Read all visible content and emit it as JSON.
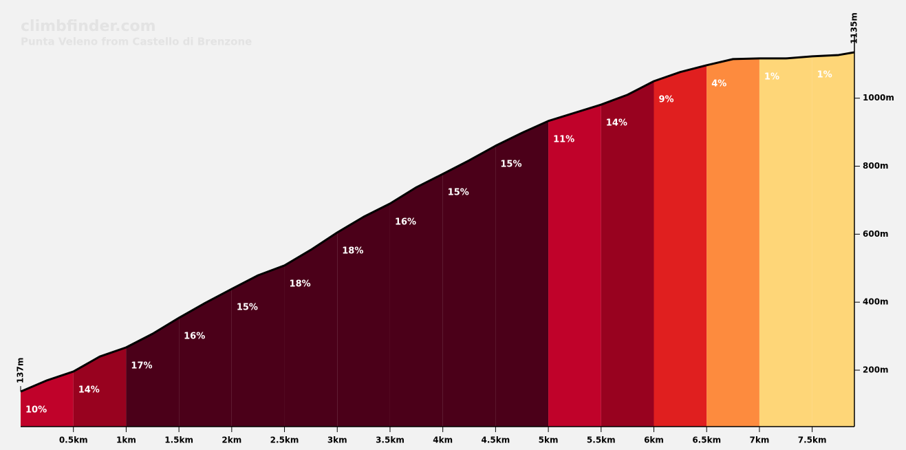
{
  "chart_data": {
    "type": "climb-profile",
    "title": "climbfinder.com",
    "subtitle": "Punta Veleno from Castello di Brenzone",
    "x": [
      0,
      0.25,
      0.5,
      0.75,
      1,
      1.25,
      1.5,
      1.75,
      2,
      2.25,
      2.5,
      2.75,
      3,
      3.25,
      3.5,
      3.75,
      4,
      4.25,
      4.5,
      4.75,
      5,
      5.25,
      5.5,
      5.75,
      6,
      6.25,
      6.5,
      6.75,
      7,
      7.25,
      7.5,
      7.75,
      7.9
    ],
    "values": [
      137,
      170,
      196,
      240,
      267,
      307,
      354,
      398,
      439,
      479,
      508,
      554,
      605,
      651,
      690,
      738,
      777,
      817,
      860,
      898,
      933,
      957,
      981,
      1010,
      1050,
      1077,
      1097,
      1115,
      1117,
      1117,
      1123,
      1127,
      1135
    ],
    "line_color": "#000000",
    "segments": {
      "x": [
        0,
        0.5,
        1,
        1.5,
        2,
        2.5,
        3,
        3.5,
        4,
        4.5,
        5,
        5.5,
        6,
        6.5,
        7,
        7.5
      ],
      "values": [
        10,
        14,
        17,
        16,
        15,
        18,
        18,
        16,
        15,
        15,
        11,
        14,
        9,
        4,
        1,
        1
      ],
      "value_labels": [
        "10%",
        "14%",
        "17%",
        "16%",
        "15%",
        "18%",
        "18%",
        "16%",
        "15%",
        "15%",
        "11%",
        "14%",
        "9%",
        "4%",
        "1%",
        "1%"
      ],
      "colors": [
        "#c0022a",
        "#98021f",
        "#4b0019",
        "#4b0019",
        "#4b0019",
        "#4b0019",
        "#4b0019",
        "#4b0019",
        "#4b0019",
        "#4b0019",
        "#c0022a",
        "#98021f",
        "#e01f1f",
        "#fd8b3e",
        "#fed678",
        "#fed678"
      ]
    },
    "start_elevation": {
      "value": 137,
      "label": "137m"
    },
    "end_elevation": {
      "value": 1135,
      "label": "1135m"
    },
    "xlim": [
      0,
      7.9
    ],
    "ylim": [
      34,
      1135
    ],
    "xticks": [
      {
        "value": 0.5,
        "label": "0.5km"
      },
      {
        "value": 1,
        "label": "1km"
      },
      {
        "value": 1.5,
        "label": "1.5km"
      },
      {
        "value": 2,
        "label": "2km"
      },
      {
        "value": 2.5,
        "label": "2.5km"
      },
      {
        "value": 3,
        "label": "3km"
      },
      {
        "value": 3.5,
        "label": "3.5km"
      },
      {
        "value": 4,
        "label": "4km"
      },
      {
        "value": 4.5,
        "label": "4.5km"
      },
      {
        "value": 5,
        "label": "5km"
      },
      {
        "value": 5.5,
        "label": "5.5km"
      },
      {
        "value": 6,
        "label": "6km"
      },
      {
        "value": 6.5,
        "label": "6.5km"
      },
      {
        "value": 7,
        "label": "7km"
      },
      {
        "value": 7.5,
        "label": "7.5km"
      }
    ],
    "yticks": [
      {
        "value": 200,
        "label": "200m"
      },
      {
        "value": 400,
        "label": "400m"
      },
      {
        "value": 600,
        "label": "600m"
      },
      {
        "value": 800,
        "label": "800m"
      },
      {
        "value": 1000,
        "label": "1000m"
      }
    ]
  }
}
